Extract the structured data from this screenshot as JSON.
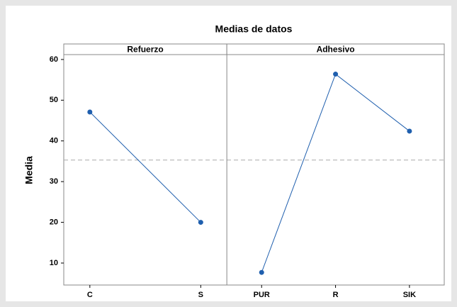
{
  "chart_data": {
    "type": "line",
    "title": "Medias de datos",
    "ylabel": "Media",
    "ylim": [
      4.6,
      61.2
    ],
    "yticks": [
      10,
      20,
      30,
      40,
      50,
      60
    ],
    "reference_line": 35.3,
    "color": "#1f5fae",
    "panels": [
      {
        "title": "Refuerzo",
        "categories": [
          "C",
          "S"
        ],
        "values": [
          47.1,
          20.0
        ]
      },
      {
        "title": "Adhesivo",
        "categories": [
          "PUR",
          "R",
          "SIK"
        ],
        "values": [
          7.7,
          56.4,
          42.4
        ]
      }
    ]
  }
}
